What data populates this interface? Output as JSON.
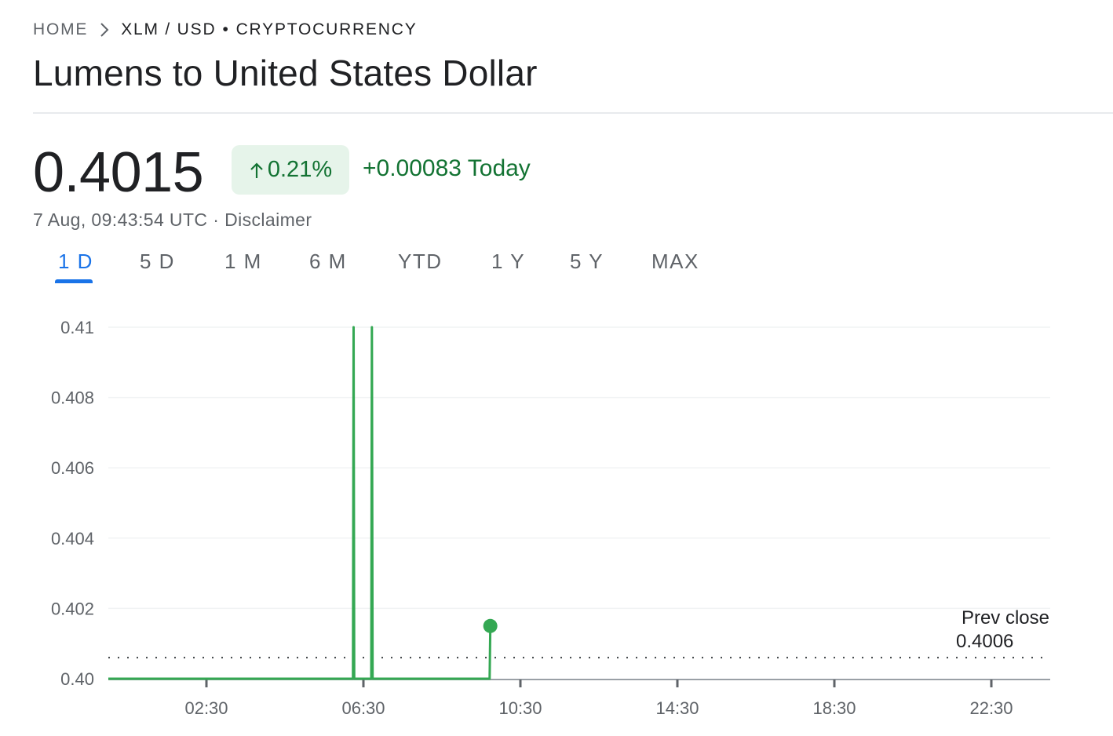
{
  "breadcrumb": {
    "home": "HOME",
    "pair": "XLM / USD",
    "separator": "•",
    "type": "CRYPTOCURRENCY",
    "chevron_icon": "chevron-right-icon"
  },
  "title": "Lumens to United States Dollar",
  "quote": {
    "price": "0.4015",
    "change_percent": "0.21%",
    "change_icon": "arrow-up-icon",
    "change_absolute": "+0.00083 Today",
    "timestamp": "7 Aug, 09:43:54 UTC",
    "timestamp_separator": "·",
    "disclaimer": "Disclaimer"
  },
  "tabs": [
    {
      "label": "1 D",
      "active": true
    },
    {
      "label": "5 D",
      "active": false
    },
    {
      "label": "1 M",
      "active": false
    },
    {
      "label": "6 M",
      "active": false
    },
    {
      "label": "YTD",
      "active": false
    },
    {
      "label": "1 Y",
      "active": false
    },
    {
      "label": "5 Y",
      "active": false
    },
    {
      "label": "MAX",
      "active": false
    }
  ],
  "colors": {
    "positive": "#137333",
    "positive_bg": "#e6f4ea",
    "line": "#34a853",
    "accent": "#1a73e8",
    "grid": "#f1f3f4",
    "text_secondary": "#5f6368"
  },
  "chart_data": {
    "type": "line",
    "x_unit": "hours (UTC)",
    "xlim": [
      "00:00",
      "24:00"
    ],
    "ylim": [
      0.4,
      0.41
    ],
    "y_ticks": [
      "0.40",
      "0.402",
      "0.404",
      "0.406",
      "0.408",
      "0.41"
    ],
    "x_ticks": [
      "02:30",
      "06:30",
      "10:30",
      "14:30",
      "18:30",
      "22:30"
    ],
    "grid": true,
    "series": [
      {
        "x": [
          "00:00",
          "06:14",
          "06:15",
          "06:16",
          "06:42",
          "06:43",
          "06:44",
          "09:43",
          "09:44"
        ],
        "y": [
          0.4,
          0.4,
          0.41,
          0.4,
          0.4,
          0.41,
          0.4,
          0.4,
          0.4015
        ]
      }
    ],
    "current_point": {
      "x": "09:44",
      "y": 0.4015
    },
    "reference_line": {
      "label": "Prev close",
      "value": "0.4006"
    }
  }
}
